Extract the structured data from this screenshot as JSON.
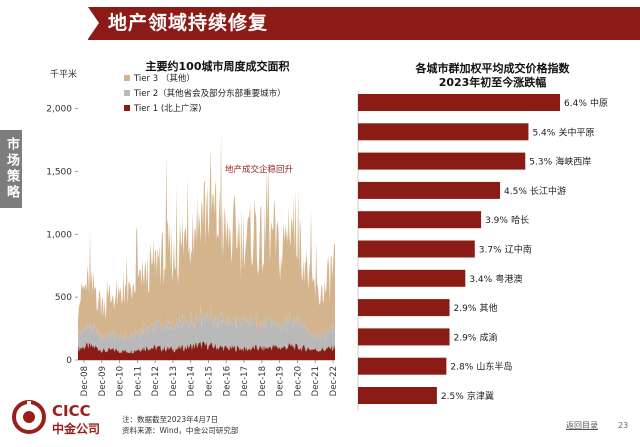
{
  "header": {
    "title": "地产领域持续修复"
  },
  "side_tab": {
    "label": "市场策略"
  },
  "colors": {
    "brand": "#8c1b17",
    "tier3": "#d4b48c",
    "tier2": "#b9b9b9",
    "tier1": "#8a1c15",
    "bar": "#8a1c15"
  },
  "chart_data": [
    {
      "type": "area",
      "title": "主要约100城市周度成交面积",
      "ylabel": "千平米",
      "ylim": [
        0,
        2100
      ],
      "yticks": [
        "0",
        "500",
        "1,000",
        "1,500",
        "2,000"
      ],
      "ytick_values": [
        0,
        500,
        1000,
        1500,
        2000
      ],
      "xticks": [
        "Dec-08",
        "Dec-09",
        "Dec-10",
        "Dec-11",
        "Dec-12",
        "Dec-13",
        "Dec-14",
        "Dec-15",
        "Dec-16",
        "Dec-17",
        "Dec-18",
        "Dec-19",
        "Dec-20",
        "Dec-21",
        "Dec-22"
      ],
      "legend": [
        "Tier 3 （其他）",
        "Tier 2（其他省会及部分东部重要城市）",
        "Tier 1 (北上广深)"
      ],
      "legend_position": "top-left",
      "annotation": "地产成交企稳回升",
      "x": [
        "Dec-08",
        "Jun-09",
        "Dec-09",
        "Jun-10",
        "Dec-10",
        "Jun-11",
        "Dec-11",
        "Jun-12",
        "Dec-12",
        "Jun-13",
        "Dec-13",
        "Jun-14",
        "Dec-14",
        "Jun-15",
        "Dec-15",
        "Jun-16",
        "Dec-16",
        "Jun-17",
        "Dec-17",
        "Jun-18",
        "Dec-18",
        "Jun-19",
        "Dec-19",
        "Jun-20",
        "Dec-20",
        "Jun-21",
        "Dec-21",
        "Jun-22",
        "Dec-22",
        "Apr-23"
      ],
      "series": [
        {
          "name": "Tier 1 (北上广深)",
          "values": [
            90,
            110,
            100,
            70,
            80,
            70,
            70,
            90,
            100,
            95,
            90,
            85,
            100,
            110,
            120,
            110,
            100,
            90,
            95,
            85,
            95,
            90,
            105,
            95,
            110,
            95,
            90,
            80,
            85,
            100
          ]
        },
        {
          "name": "Tier 2（其他省会及部分东部重要城市）",
          "values": [
            110,
            150,
            130,
            110,
            120,
            110,
            120,
            150,
            170,
            180,
            190,
            170,
            200,
            220,
            230,
            240,
            220,
            210,
            210,
            200,
            210,
            190,
            200,
            160,
            230,
            210,
            150,
            120,
            120,
            180
          ]
        },
        {
          "name": "Tier 3 （其他）",
          "values": [
            280,
            340,
            300,
            260,
            300,
            310,
            330,
            400,
            450,
            520,
            570,
            550,
            650,
            760,
            870,
            900,
            760,
            650,
            720,
            640,
            740,
            600,
            700,
            550,
            850,
            620,
            450,
            320,
            360,
            530
          ]
        }
      ]
    },
    {
      "type": "bar",
      "title": "各城市群加权平均成交价格指数",
      "subtitle": "2023年初至今涨跌幅",
      "categories": [
        "中原",
        "关中平原",
        "海峡西岸",
        "长江中游",
        "哈长",
        "辽中南",
        "粤港澳",
        "其他",
        "成渝",
        "山东半岛",
        "京津冀"
      ],
      "values": [
        6.4,
        5.4,
        5.3,
        4.5,
        3.9,
        3.7,
        3.4,
        2.9,
        2.9,
        2.8,
        2.5
      ],
      "value_labels": [
        "6.4%",
        "5.4%",
        "5.3%",
        "4.5%",
        "3.9%",
        "3.7%",
        "3.4%",
        "2.9%",
        "2.9%",
        "2.8%",
        "2.5%"
      ],
      "xlim": [
        0,
        6.6
      ]
    }
  ],
  "footer": {
    "note1": "注：数据截至2023年4月7日",
    "note2": "资料来源：Wind，中金公司研究部",
    "logo_en": "CICC",
    "logo_cn": "中金公司",
    "back_link": "返回目录",
    "page_number": "23"
  }
}
